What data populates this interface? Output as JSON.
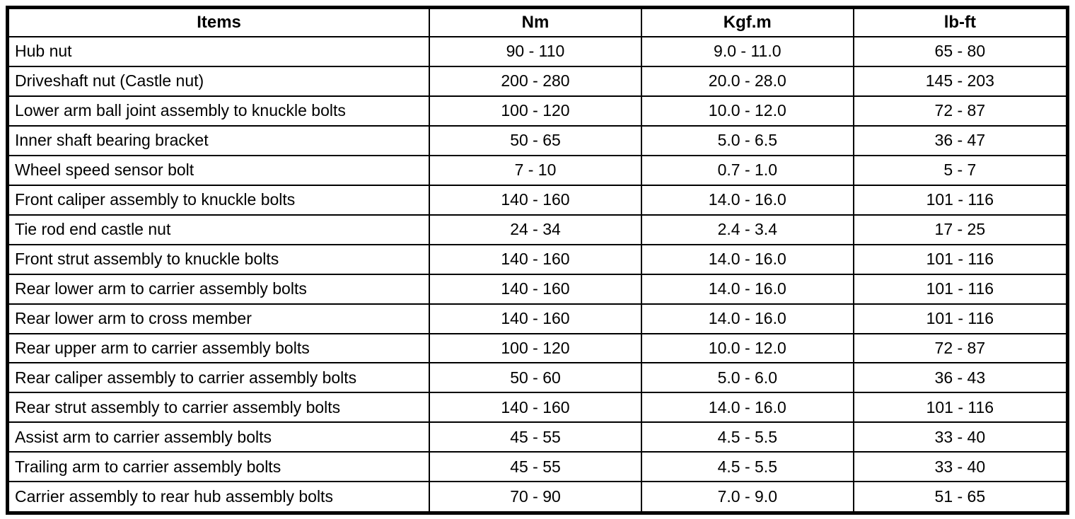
{
  "table": {
    "headers": [
      "Items",
      "Nm",
      "Kgf.m",
      "lb-ft"
    ],
    "column_widths_pct": [
      39.8,
      20.0,
      20.0,
      20.2
    ],
    "border_color": "#000000",
    "background_color": "#ffffff",
    "rows": [
      {
        "item": "Hub nut",
        "nm": "90 - 110",
        "kgfm": "9.0 - 11.0",
        "lbft": "65 - 80"
      },
      {
        "item": "Driveshaft nut (Castle nut)",
        "nm": "200 - 280",
        "kgfm": "20.0 - 28.0",
        "lbft": "145 - 203"
      },
      {
        "item": "Lower arm ball joint assembly to knuckle bolts",
        "nm": "100 - 120",
        "kgfm": "10.0 - 12.0",
        "lbft": "72 - 87"
      },
      {
        "item": "Inner shaft bearing bracket",
        "nm": "50 - 65",
        "kgfm": "5.0 - 6.5",
        "lbft": "36 - 47"
      },
      {
        "item": "Wheel speed sensor bolt",
        "nm": "7 - 10",
        "kgfm": "0.7 - 1.0",
        "lbft": "5 - 7"
      },
      {
        "item": "Front caliper assembly to knuckle bolts",
        "nm": "140 - 160",
        "kgfm": "14.0 - 16.0",
        "lbft": "101 - 116"
      },
      {
        "item": "Tie rod end castle nut",
        "nm": "24 - 34",
        "kgfm": "2.4 - 3.4",
        "lbft": "17 - 25"
      },
      {
        "item": "Front strut assembly to knuckle bolts",
        "nm": "140 - 160",
        "kgfm": "14.0 - 16.0",
        "lbft": "101 - 116"
      },
      {
        "item": "Rear lower arm to carrier assembly bolts",
        "nm": "140 - 160",
        "kgfm": "14.0 - 16.0",
        "lbft": "101 - 116"
      },
      {
        "item": "Rear lower arm to cross member",
        "nm": "140 - 160",
        "kgfm": "14.0 - 16.0",
        "lbft": "101 - 116"
      },
      {
        "item": "Rear upper arm to carrier assembly bolts",
        "nm": "100 - 120",
        "kgfm": "10.0 - 12.0",
        "lbft": "72 - 87"
      },
      {
        "item": "Rear caliper assembly to carrier assembly bolts",
        "nm": "50 - 60",
        "kgfm": "5.0 - 6.0",
        "lbft": "36 - 43"
      },
      {
        "item": "Rear strut assembly to carrier assembly bolts",
        "nm": "140 - 160",
        "kgfm": "14.0 - 16.0",
        "lbft": "101 - 116"
      },
      {
        "item": "Assist arm to carrier assembly bolts",
        "nm": "45 - 55",
        "kgfm": "4.5 - 5.5",
        "lbft": "33 - 40"
      },
      {
        "item": "Trailing arm to carrier assembly bolts",
        "nm": "45 - 55",
        "kgfm": "4.5 - 5.5",
        "lbft": "33 - 40"
      },
      {
        "item": "Carrier assembly to rear hub assembly bolts",
        "nm": "70 - 90",
        "kgfm": "7.0 - 9.0",
        "lbft": "51 - 65"
      }
    ]
  }
}
